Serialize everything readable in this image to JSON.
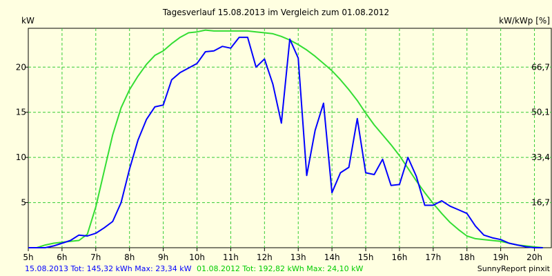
{
  "chart_data": {
    "type": "line",
    "title": "Tagesverlauf 15.08.2013 im Vergleich zum 01.08.2012",
    "ylabel_left": "kW",
    "ylabel_right": "kW/kWp [%]",
    "xlim": [
      5,
      20.5
    ],
    "ylim": [
      0,
      24.3
    ],
    "x_ticks": [
      {
        "value": 5,
        "label": "5h"
      },
      {
        "value": 6,
        "label": "6h"
      },
      {
        "value": 7,
        "label": "7h"
      },
      {
        "value": 8,
        "label": "8h"
      },
      {
        "value": 9,
        "label": "9h"
      },
      {
        "value": 10,
        "label": "10h"
      },
      {
        "value": 11,
        "label": "11h"
      },
      {
        "value": 12,
        "label": "12h"
      },
      {
        "value": 13,
        "label": "13h"
      },
      {
        "value": 14,
        "label": "14h"
      },
      {
        "value": 15,
        "label": "15h"
      },
      {
        "value": 16,
        "label": "16h"
      },
      {
        "value": 17,
        "label": "17h"
      },
      {
        "value": 18,
        "label": "18h"
      },
      {
        "value": 19,
        "label": "19h"
      },
      {
        "value": 20,
        "label": "20h"
      }
    ],
    "y_ticks_left": [
      {
        "value": 5,
        "label": "5"
      },
      {
        "value": 10,
        "label": "10"
      },
      {
        "value": 15,
        "label": "15"
      },
      {
        "value": 20,
        "label": "20"
      }
    ],
    "y_ticks_right": [
      {
        "value": 5,
        "label": "16,7"
      },
      {
        "value": 10,
        "label": "33,4"
      },
      {
        "value": 15,
        "label": "50,1"
      },
      {
        "value": 20,
        "label": "66,7"
      }
    ],
    "grid": true,
    "series": [
      {
        "name": "15.08.2013 Tot: 145,32 kWh Max: 23,34 kW",
        "color": "#0000ff",
        "x": [
          5.0,
          5.25,
          5.5,
          5.75,
          6.0,
          6.25,
          6.5,
          6.75,
          7.0,
          7.25,
          7.5,
          7.75,
          8.0,
          8.25,
          8.5,
          8.75,
          9.0,
          9.25,
          9.5,
          9.75,
          10.0,
          10.25,
          10.5,
          10.75,
          11.0,
          11.25,
          11.5,
          11.75,
          12.0,
          12.25,
          12.5,
          12.75,
          13.0,
          13.25,
          13.5,
          13.75,
          14.0,
          14.25,
          14.5,
          14.75,
          15.0,
          15.25,
          15.5,
          15.75,
          16.0,
          16.25,
          16.5,
          16.75,
          17.0,
          17.25,
          17.5,
          17.75,
          18.0,
          18.25,
          18.5,
          18.75,
          19.0,
          19.25,
          19.5,
          19.75,
          20.0,
          20.25
        ],
        "y": [
          0,
          0,
          0,
          0.2,
          0.5,
          0.8,
          1.4,
          1.3,
          1.6,
          2.2,
          2.9,
          5.0,
          8.7,
          11.9,
          14.2,
          15.6,
          15.8,
          18.6,
          19.4,
          19.9,
          20.4,
          21.7,
          21.8,
          22.3,
          22.1,
          23.3,
          23.3,
          20.0,
          20.9,
          18.1,
          13.8,
          23.1,
          21.0,
          8.0,
          13.0,
          16.0,
          6.1,
          8.3,
          8.9,
          14.3,
          8.3,
          8.1,
          9.8,
          6.9,
          7.0,
          10.0,
          7.9,
          4.7,
          4.7,
          5.2,
          4.6,
          4.2,
          3.8,
          2.4,
          1.4,
          1.1,
          0.9,
          0.5,
          0.3,
          0.1,
          0,
          0
        ]
      },
      {
        "name": "01.08.2012 Tot: 192,82 kWh Max: 24,10 kW",
        "color": "#33dd33",
        "x": [
          5.0,
          5.25,
          5.5,
          5.75,
          6.0,
          6.25,
          6.5,
          6.75,
          7.0,
          7.25,
          7.5,
          7.75,
          8.0,
          8.25,
          8.5,
          8.75,
          9.0,
          9.25,
          9.5,
          9.75,
          10.0,
          10.25,
          10.5,
          10.75,
          11.0,
          11.25,
          11.5,
          11.75,
          12.0,
          12.25,
          12.5,
          12.75,
          13.0,
          13.25,
          13.5,
          13.75,
          14.0,
          14.25,
          14.5,
          14.75,
          15.0,
          15.25,
          15.5,
          15.75,
          16.0,
          16.25,
          16.5,
          16.75,
          17.0,
          17.25,
          17.5,
          17.75,
          18.0,
          18.25,
          18.5,
          18.75,
          19.0,
          19.25,
          19.5,
          19.75,
          20.0,
          20.25
        ],
        "y": [
          0,
          0,
          0.3,
          0.5,
          0.6,
          0.7,
          0.8,
          1.5,
          4.5,
          8.5,
          12.5,
          15.5,
          17.5,
          19.0,
          20.3,
          21.3,
          21.8,
          22.6,
          23.3,
          23.8,
          23.9,
          24.1,
          24.0,
          24.0,
          24.0,
          24.0,
          24.0,
          23.9,
          23.8,
          23.7,
          23.4,
          23.0,
          22.5,
          21.9,
          21.2,
          20.4,
          19.6,
          18.6,
          17.5,
          16.3,
          14.9,
          13.6,
          12.5,
          11.4,
          10.2,
          8.8,
          7.4,
          6.1,
          4.9,
          3.8,
          2.8,
          2.0,
          1.3,
          1.0,
          0.9,
          0.8,
          0.7,
          0.5,
          0.3,
          0.2,
          0.1,
          0
        ]
      }
    ]
  },
  "footer": {
    "left": "15.08.2013 Tot: 145,32 kWh Max: 23,34 kW",
    "middle": "01.08.2012 Tot: 192,82 kWh Max: 24,10 kW",
    "right": "SunnyReport pinxit"
  },
  "colors": {
    "background": "#ffffe1",
    "plot_background": "#ffffe1",
    "grid": "#33cc33",
    "axis": "#000000"
  }
}
